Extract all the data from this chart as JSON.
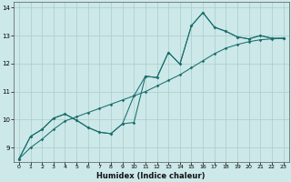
{
  "bg_color": "#cce8e8",
  "grid_color": "#aacccc",
  "line_color": "#1a6e6e",
  "xlabel": "Humidex (Indice chaleur)",
  "xlim": [
    -0.5,
    23.5
  ],
  "ylim": [
    8.5,
    14.2
  ],
  "xticks": [
    0,
    1,
    2,
    3,
    4,
    5,
    6,
    7,
    8,
    9,
    10,
    11,
    12,
    13,
    14,
    15,
    16,
    17,
    18,
    19,
    20,
    21,
    22,
    23
  ],
  "yticks": [
    9,
    10,
    11,
    12,
    13,
    14
  ],
  "series": [
    {
      "x": [
        0,
        1,
        2,
        3,
        4,
        5,
        6,
        7,
        8,
        9,
        10,
        11,
        12,
        13,
        14,
        15,
        16,
        17,
        18,
        19,
        20,
        21,
        22,
        23
      ],
      "y": [
        8.6,
        9.4,
        9.65,
        10.05,
        10.2,
        9.98,
        9.72,
        9.55,
        9.5,
        9.85,
        9.9,
        11.55,
        11.5,
        12.4,
        11.98,
        13.35,
        13.82,
        13.3,
        13.15,
        12.95,
        12.88,
        13.0,
        12.9,
        12.9
      ]
    },
    {
      "x": [
        0,
        1,
        2,
        3,
        4,
        5,
        6,
        7,
        8,
        9,
        10,
        11,
        12,
        13,
        14,
        15,
        16,
        17,
        18,
        19,
        20,
        21,
        22,
        23
      ],
      "y": [
        8.6,
        9.4,
        9.65,
        10.05,
        10.2,
        9.98,
        9.72,
        9.55,
        9.5,
        9.85,
        10.85,
        11.55,
        11.5,
        12.4,
        11.98,
        13.35,
        13.82,
        13.3,
        13.15,
        12.95,
        12.88,
        13.0,
        12.9,
        12.9
      ]
    },
    {
      "x": [
        0,
        1,
        2,
        3,
        4,
        5,
        6,
        7,
        8,
        9,
        10,
        11,
        12,
        13,
        14,
        15,
        16,
        17,
        18,
        19,
        20,
        21,
        22,
        23
      ],
      "y": [
        8.6,
        9.0,
        9.3,
        9.65,
        9.95,
        10.1,
        10.25,
        10.4,
        10.55,
        10.7,
        10.85,
        11.0,
        11.2,
        11.4,
        11.6,
        11.85,
        12.1,
        12.35,
        12.55,
        12.68,
        12.78,
        12.85,
        12.88,
        12.9
      ]
    }
  ]
}
